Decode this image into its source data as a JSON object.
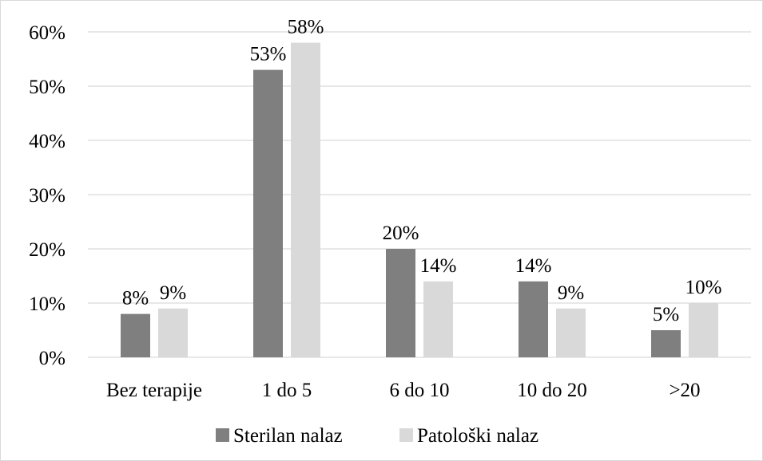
{
  "chart_data": {
    "type": "bar",
    "categories": [
      "Bez terapije",
      "1 do 5",
      "6 do 10",
      "10 do 20",
      ">20"
    ],
    "series": [
      {
        "name": "Sterilan nalaz",
        "values": [
          8,
          53,
          20,
          14,
          5
        ],
        "labels": [
          "8%",
          "53%",
          "20%",
          "14%",
          "5%"
        ],
        "color": "#7f7f7f"
      },
      {
        "name": "Patološki nalaz",
        "values": [
          9,
          58,
          14,
          9,
          10
        ],
        "labels": [
          "9%",
          "58%",
          "14%",
          "9%",
          "10%"
        ],
        "color": "#d9d9d9"
      }
    ],
    "ylim": [
      0,
      60
    ],
    "yticks": [
      0,
      10,
      20,
      30,
      40,
      50,
      60
    ],
    "ytick_labels": [
      "0%",
      "10%",
      "20%",
      "30%",
      "40%",
      "50%",
      "60%"
    ],
    "grid": true,
    "legend_position": "bottom"
  }
}
